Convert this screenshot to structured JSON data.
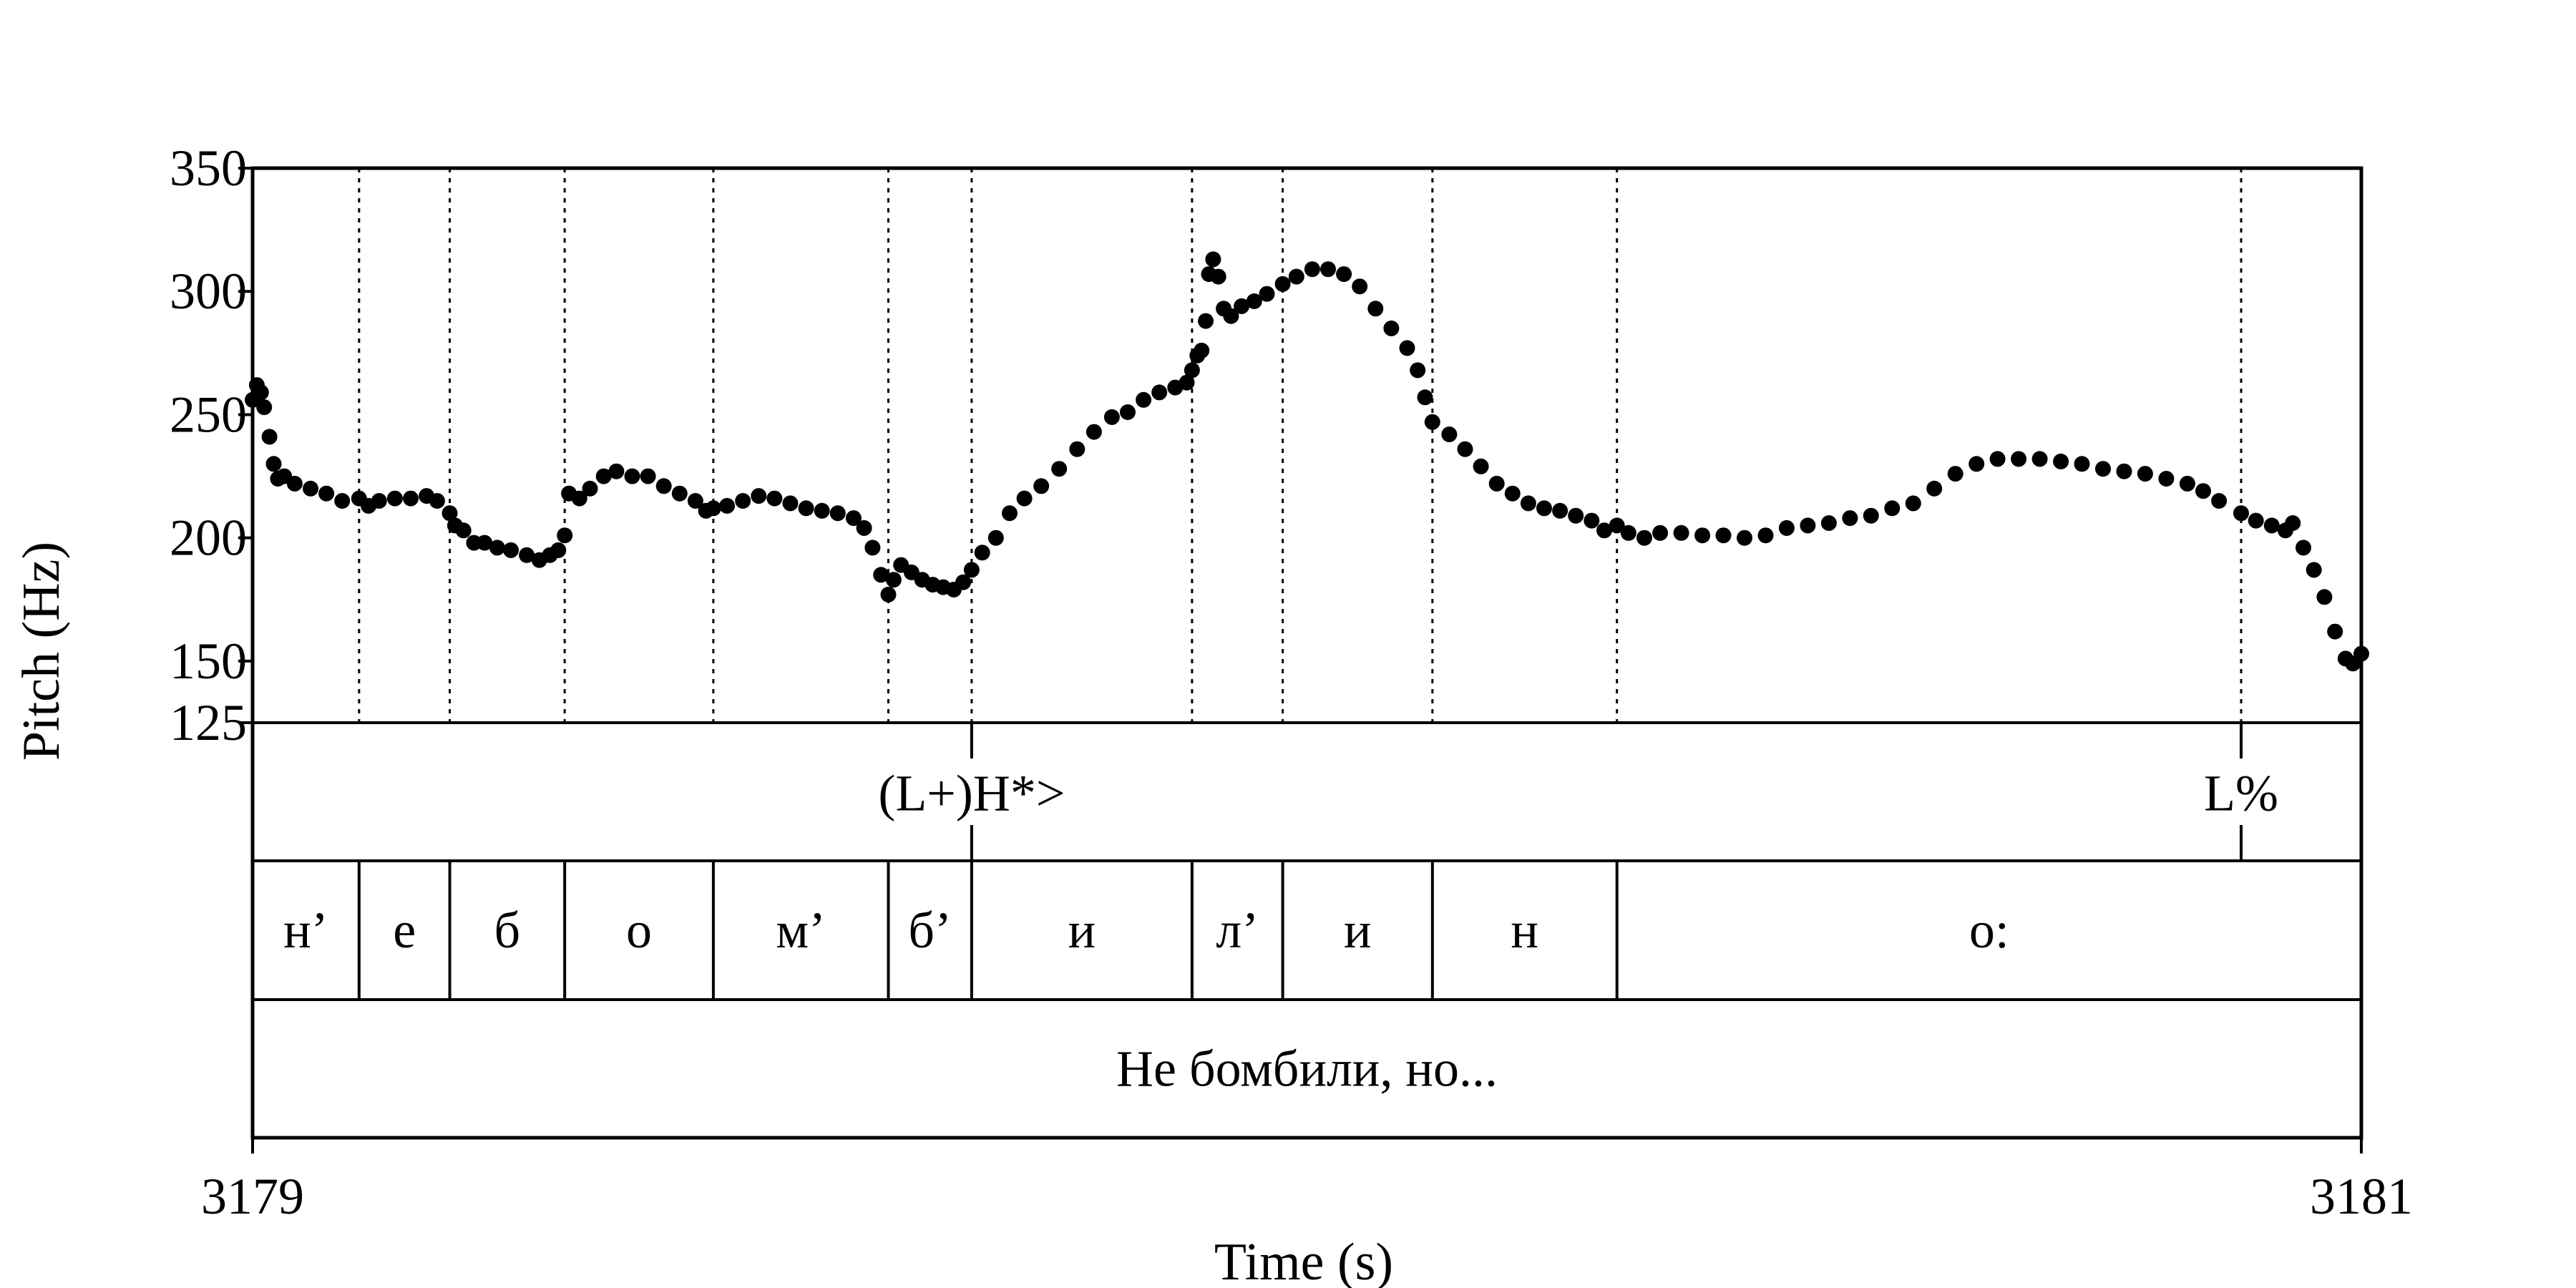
{
  "chart_data": {
    "type": "scatter",
    "ylabel": "Pitch (Hz)",
    "xlabel": "Time (s)",
    "xlim": [
      3179,
      3181
    ],
    "ylim": [
      125,
      350
    ],
    "y_ticks": [
      "350",
      "300",
      "250",
      "200",
      "150",
      "125"
    ],
    "y_tick_values": [
      350,
      300,
      250,
      200,
      150,
      125
    ],
    "x_ticks": [
      "3179",
      "3181"
    ],
    "x_tick_values": [
      3179,
      3181
    ],
    "grid": false,
    "marker_color": "#000000",
    "boundaries": [
      3179.101,
      3179.187,
      3179.296,
      3179.437,
      3179.603,
      3179.682,
      3179.891,
      3179.977,
      3180.119,
      3180.294,
      3180.886
    ],
    "tone_tier": {
      "points": [
        {
          "time": 3179.682,
          "label": "(L+)H*>"
        },
        {
          "time": 3180.886,
          "label": "L%"
        }
      ]
    },
    "segment_tier": {
      "segments": [
        {
          "start": 3179.0,
          "end": 3179.101,
          "label": "н’"
        },
        {
          "start": 3179.101,
          "end": 3179.187,
          "label": "е"
        },
        {
          "start": 3179.187,
          "end": 3179.296,
          "label": "б"
        },
        {
          "start": 3179.296,
          "end": 3179.437,
          "label": "о"
        },
        {
          "start": 3179.437,
          "end": 3179.603,
          "label": "м’"
        },
        {
          "start": 3179.603,
          "end": 3179.682,
          "label": "б’"
        },
        {
          "start": 3179.682,
          "end": 3179.891,
          "label": "и"
        },
        {
          "start": 3179.891,
          "end": 3179.977,
          "label": "л’"
        },
        {
          "start": 3179.977,
          "end": 3180.119,
          "label": "и"
        },
        {
          "start": 3180.119,
          "end": 3180.294,
          "label": "н"
        },
        {
          "start": 3180.294,
          "end": 3181.0,
          "label": "о:"
        }
      ]
    },
    "word_tier": {
      "segments": [
        {
          "start": 3179.0,
          "end": 3181.0,
          "label": "Не бомбили, но..."
        }
      ]
    },
    "series": [
      {
        "points": [
          [
            3179.0,
            256
          ],
          [
            3179.004,
            262
          ],
          [
            3179.008,
            259
          ],
          [
            3179.011,
            253
          ],
          [
            3179.016,
            241
          ],
          [
            3179.02,
            230
          ],
          [
            3179.024,
            224
          ],
          [
            3179.03,
            225
          ],
          [
            3179.04,
            222
          ],
          [
            3179.055,
            220
          ],
          [
            3179.07,
            218
          ],
          [
            3179.085,
            215
          ],
          [
            3179.101,
            216
          ],
          [
            3179.11,
            213
          ],
          [
            3179.12,
            215
          ],
          [
            3179.135,
            216
          ],
          [
            3179.15,
            216
          ],
          [
            3179.165,
            217
          ],
          [
            3179.175,
            215
          ],
          [
            3179.187,
            210
          ],
          [
            3179.192,
            205
          ],
          [
            3179.2,
            203
          ],
          [
            3179.21,
            198
          ],
          [
            3179.22,
            198
          ],
          [
            3179.232,
            196
          ],
          [
            3179.245,
            195
          ],
          [
            3179.26,
            193
          ],
          [
            3179.272,
            191
          ],
          [
            3179.282,
            193
          ],
          [
            3179.29,
            195
          ],
          [
            3179.296,
            201
          ],
          [
            3179.3,
            218
          ],
          [
            3179.31,
            216
          ],
          [
            3179.32,
            220
          ],
          [
            3179.333,
            225
          ],
          [
            3179.345,
            227
          ],
          [
            3179.36,
            225
          ],
          [
            3179.375,
            225
          ],
          [
            3179.39,
            221
          ],
          [
            3179.405,
            218
          ],
          [
            3179.42,
            215
          ],
          [
            3179.43,
            211
          ],
          [
            3179.437,
            212
          ],
          [
            3179.45,
            213
          ],
          [
            3179.465,
            215
          ],
          [
            3179.48,
            217
          ],
          [
            3179.495,
            216
          ],
          [
            3179.51,
            214
          ],
          [
            3179.525,
            212
          ],
          [
            3179.54,
            211
          ],
          [
            3179.555,
            210
          ],
          [
            3179.57,
            208
          ],
          [
            3179.58,
            204
          ],
          [
            3179.588,
            196
          ],
          [
            3179.596,
            185
          ],
          [
            3179.603,
            177
          ],
          [
            3179.608,
            183
          ],
          [
            3179.615,
            189
          ],
          [
            3179.625,
            186
          ],
          [
            3179.635,
            183
          ],
          [
            3179.645,
            181
          ],
          [
            3179.655,
            180
          ],
          [
            3179.665,
            179
          ],
          [
            3179.674,
            182
          ],
          [
            3179.682,
            187
          ],
          [
            3179.692,
            194
          ],
          [
            3179.705,
            200
          ],
          [
            3179.718,
            210
          ],
          [
            3179.732,
            216
          ],
          [
            3179.748,
            221
          ],
          [
            3179.765,
            228
          ],
          [
            3179.782,
            236
          ],
          [
            3179.798,
            243
          ],
          [
            3179.815,
            249
          ],
          [
            3179.83,
            251
          ],
          [
            3179.845,
            256
          ],
          [
            3179.86,
            259
          ],
          [
            3179.875,
            261
          ],
          [
            3179.886,
            263
          ],
          [
            3179.891,
            268
          ],
          [
            3179.896,
            274
          ],
          [
            3179.9,
            276
          ],
          [
            3179.904,
            288
          ],
          [
            3179.907,
            307
          ],
          [
            3179.911,
            313
          ],
          [
            3179.916,
            306
          ],
          [
            3179.921,
            293
          ],
          [
            3179.928,
            290
          ],
          [
            3179.938,
            294
          ],
          [
            3179.95,
            296
          ],
          [
            3179.962,
            299
          ],
          [
            3179.977,
            303
          ],
          [
            3179.99,
            306
          ],
          [
            3180.005,
            309
          ],
          [
            3180.02,
            309
          ],
          [
            3180.035,
            307
          ],
          [
            3180.05,
            302
          ],
          [
            3180.065,
            293
          ],
          [
            3180.08,
            285
          ],
          [
            3180.095,
            277
          ],
          [
            3180.105,
            268
          ],
          [
            3180.112,
            257
          ],
          [
            3180.119,
            247
          ],
          [
            3180.135,
            242
          ],
          [
            3180.15,
            236
          ],
          [
            3180.165,
            229
          ],
          [
            3180.18,
            222
          ],
          [
            3180.195,
            218
          ],
          [
            3180.21,
            214
          ],
          [
            3180.225,
            212
          ],
          [
            3180.24,
            211
          ],
          [
            3180.255,
            209
          ],
          [
            3180.27,
            207
          ],
          [
            3180.282,
            203
          ],
          [
            3180.294,
            205
          ],
          [
            3180.305,
            202
          ],
          [
            3180.32,
            200
          ],
          [
            3180.335,
            202
          ],
          [
            3180.355,
            202
          ],
          [
            3180.375,
            201
          ],
          [
            3180.395,
            201
          ],
          [
            3180.415,
            200
          ],
          [
            3180.435,
            201
          ],
          [
            3180.455,
            204
          ],
          [
            3180.475,
            205
          ],
          [
            3180.495,
            206
          ],
          [
            3180.515,
            208
          ],
          [
            3180.535,
            209
          ],
          [
            3180.555,
            212
          ],
          [
            3180.575,
            214
          ],
          [
            3180.595,
            220
          ],
          [
            3180.615,
            226
          ],
          [
            3180.635,
            230
          ],
          [
            3180.655,
            232
          ],
          [
            3180.675,
            232
          ],
          [
            3180.695,
            232
          ],
          [
            3180.715,
            231
          ],
          [
            3180.735,
            230
          ],
          [
            3180.755,
            228
          ],
          [
            3180.775,
            227
          ],
          [
            3180.795,
            226
          ],
          [
            3180.815,
            224
          ],
          [
            3180.835,
            222
          ],
          [
            3180.85,
            219
          ],
          [
            3180.865,
            215
          ],
          [
            3180.886,
            210
          ],
          [
            3180.9,
            207
          ],
          [
            3180.915,
            205
          ],
          [
            3180.928,
            203
          ],
          [
            3180.935,
            206
          ],
          [
            3180.945,
            196
          ],
          [
            3180.955,
            187
          ],
          [
            3180.965,
            176
          ],
          [
            3180.975,
            162
          ],
          [
            3180.985,
            151
          ],
          [
            3180.992,
            149
          ],
          [
            3181.0,
            153
          ]
        ]
      }
    ]
  }
}
